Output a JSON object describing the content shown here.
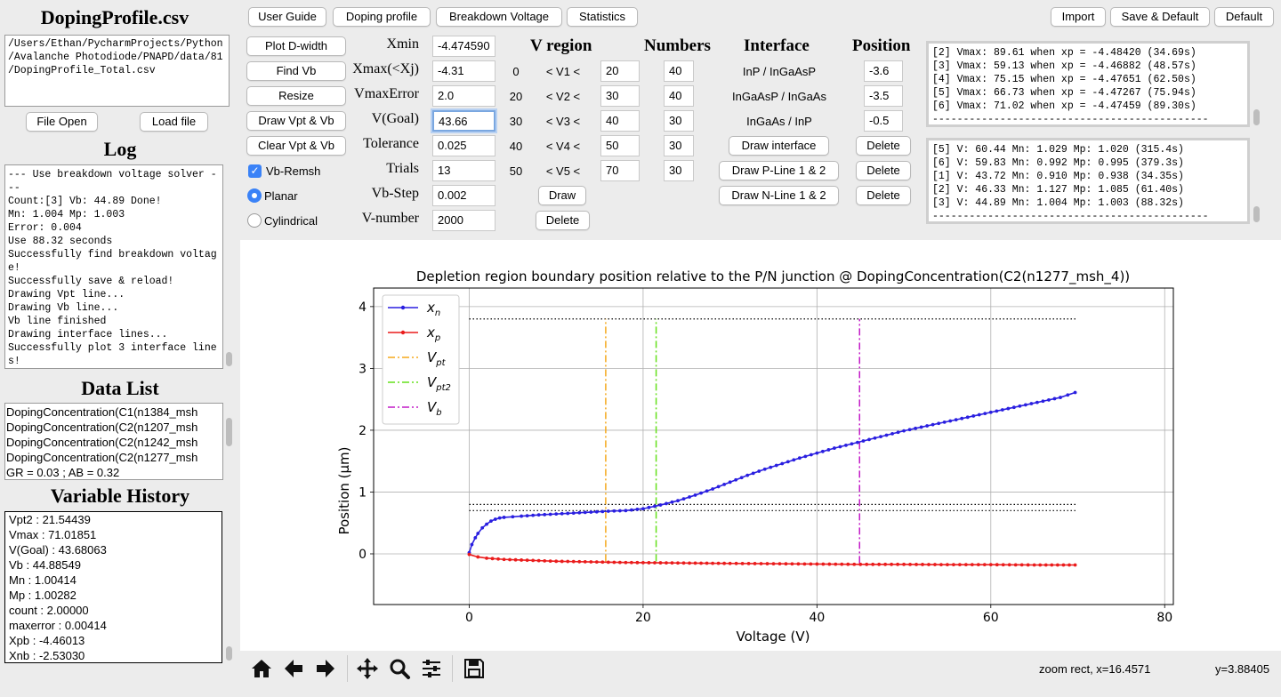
{
  "left": {
    "file_title": "DopingProfile.csv",
    "file_path_lines": [
      "/Users/Ethan/PycharmProjects/Python",
      "/Avalanche Photodiode/PNAPD/data/81",
      "/DopingProfile_Total.csv"
    ],
    "file_open_label": "File Open",
    "load_file_label": "Load file",
    "log_title": "Log",
    "log_lines": [
      "--- Use breakdown voltage solver -",
      "--",
      "Count:[3]  Vb: 44.89 Done!",
      "Mn: 1.004   Mp: 1.003",
      "Error: 0.004",
      "Use 88.32 seconds",
      "Successfully find breakdown voltag",
      "e!",
      "Successfully save & reload!",
      "Drawing Vpt line...",
      "Drawing Vb line...",
      "Vb line finished",
      "Drawing interface lines...",
      "Successfully plot 3 interface line",
      "s!"
    ],
    "data_list_title": "Data List",
    "data_list_items": [
      "DopingConcentration(C1(n1384_msh",
      "DopingConcentration(C2(n1207_msh",
      "DopingConcentration(C2(n1242_msh",
      "DopingConcentration(C2(n1277_msh",
      "GR = 0.03 ; AB = 0.32"
    ],
    "var_history_title": "Variable History",
    "var_history": [
      "Vpt2 :    21.54439",
      "Vmax :     71.01851",
      "V(Goal) :     43.68063",
      "Vb :     44.88549",
      "Mn :     1.00414",
      "Mp :     1.00282",
      "count :     2.00000",
      "maxerror :     0.00414",
      "Xpb :    -4.46013",
      "Xnb :    -2.53030"
    ]
  },
  "tabs": [
    "User Guide",
    "Doping profile",
    "Breakdown Voltage",
    "Statistics"
  ],
  "right_buttons": [
    "Import",
    "Save & Default",
    "Default"
  ],
  "actions": [
    "Plot D-width",
    "Find Vb",
    "Resize",
    "Draw Vpt & Vb",
    "Clear Vpt & Vb"
  ],
  "options": {
    "vb_remsh": "Vb-Remsh",
    "planar": "Planar",
    "cylindrical": "Cylindrical"
  },
  "params": [
    {
      "label": "Xmin",
      "value": "-4.474590"
    },
    {
      "label": "Xmax(<Xj)",
      "value": "-4.31"
    },
    {
      "label": "VmaxError",
      "value": "2.0"
    },
    {
      "label": "V(Goal)",
      "value": "43.66"
    },
    {
      "label": "Tolerance",
      "value": "0.025"
    },
    {
      "label": "Trials",
      "value": "13"
    },
    {
      "label": "Vb-Step",
      "value": "0.002"
    },
    {
      "label": "V-number",
      "value": "2000"
    }
  ],
  "vregion": {
    "header": "V region",
    "numbers_header": "Numbers",
    "rows": [
      {
        "low": "0",
        "name": "<  V1  <",
        "high": "20",
        "num": "40"
      },
      {
        "low": "20",
        "name": "<  V2  <",
        "high": "30",
        "num": "40"
      },
      {
        "low": "30",
        "name": "<  V3  <",
        "high": "40",
        "num": "30"
      },
      {
        "low": "40",
        "name": "<  V4  <",
        "high": "50",
        "num": "30"
      },
      {
        "low": "50",
        "name": "<  V5  <",
        "high": "70",
        "num": "30"
      }
    ],
    "draw_label": "Draw",
    "delete_label": "Delete"
  },
  "interface": {
    "header": "Interface",
    "position_header": "Position",
    "rows": [
      {
        "name": "InP / InGaAsP",
        "pos": "-3.6"
      },
      {
        "name": "InGaAsP / InGaAs",
        "pos": "-3.5"
      },
      {
        "name": "InGaAs / InP",
        "pos": "-0.5"
      }
    ],
    "draw_buttons": [
      "Draw interface",
      "Draw P-Line 1 & 2",
      "Draw N-Line 1 & 2"
    ],
    "delete_label": "Delete"
  },
  "vmax_log": [
    "[2] Vmax: 89.61 when xp = -4.48420 (34.69s)",
    "[3] Vmax: 59.13 when xp = -4.46882 (48.57s)",
    "[4] Vmax: 75.15 when xp = -4.47651 (62.50s)",
    "[5] Vmax: 66.73 when xp = -4.47267 (75.94s)",
    "[6] Vmax: 71.02 when xp = -4.47459 (89.30s)",
    "---------------------------------------------"
  ],
  "vb_log": [
    "[5] V: 60.44  Mn: 1.029  Mp: 1.020  (315.4s)",
    "[6] V: 59.83  Mn: 0.992  Mp: 0.995  (379.3s)",
    "[1] V: 43.72  Mn: 0.910  Mp: 0.938  (34.35s)",
    "[2] V: 46.33  Mn: 1.127  Mp: 1.085  (61.40s)",
    "[3] V: 44.89  Mn: 1.004  Mp: 1.003  (88.32s)",
    "---------------------------------------------"
  ],
  "status": {
    "zoom": "zoom rect, x=16.4571",
    "y": "y=3.88405"
  },
  "toolbar": [
    "home-icon",
    "back-arrow-icon",
    "forward-arrow-icon",
    "pan-icon",
    "zoom-icon",
    "configure-subplots-icon",
    "save-icon"
  ],
  "colors": {
    "xn": "#2a1fe0",
    "xp": "#ea1c1c",
    "vpt": "#f5a81b",
    "vpt2": "#64e01b",
    "vb": "#c21bc7",
    "checkbox": "#3a82f7"
  },
  "chart_data": {
    "type": "line",
    "title": "Depletion region boundary position relative to the P/N junction @ DopingConcentration(C2(n1277_msh_4))",
    "xlabel": "Voltage (V)",
    "ylabel": "Position (μm)",
    "xlim": [
      -11,
      81
    ],
    "ylim": [
      -0.82,
      4.3
    ],
    "xticks": [
      "0",
      "20",
      "40",
      "60",
      "80"
    ],
    "yticks": [
      "0",
      "1",
      "2",
      "3",
      "4"
    ],
    "grid": true,
    "legend_position": "top-left",
    "legend": [
      "x_n",
      "x_p",
      "V_pt",
      "V_pt2",
      "V_b"
    ],
    "series": [
      {
        "name": "x_n",
        "x": [
          0,
          0.3,
          0.7,
          1,
          1.5,
          2,
          2.5,
          3,
          3.5,
          4,
          5,
          6,
          8,
          10,
          12,
          14,
          16,
          18,
          20,
          22,
          24,
          26,
          28,
          30,
          32,
          34,
          36,
          38,
          40,
          42,
          44,
          46,
          48,
          50,
          52,
          54,
          56,
          58,
          60,
          62,
          64,
          66,
          68,
          69.7
        ],
        "y": [
          0.02,
          0.15,
          0.26,
          0.33,
          0.42,
          0.48,
          0.53,
          0.56,
          0.58,
          0.59,
          0.6,
          0.61,
          0.63,
          0.645,
          0.66,
          0.675,
          0.69,
          0.7,
          0.73,
          0.79,
          0.86,
          0.95,
          1.05,
          1.16,
          1.27,
          1.37,
          1.46,
          1.55,
          1.63,
          1.71,
          1.78,
          1.85,
          1.92,
          1.99,
          2.05,
          2.11,
          2.17,
          2.23,
          2.29,
          2.35,
          2.41,
          2.47,
          2.53,
          2.61
        ]
      },
      {
        "name": "x_p",
        "x": [
          0,
          1,
          2,
          4,
          6,
          8,
          10,
          14,
          18,
          22,
          26,
          30,
          35,
          40,
          45,
          50,
          55,
          60,
          65,
          69.7
        ],
        "y": [
          -0.01,
          -0.05,
          -0.07,
          -0.09,
          -0.1,
          -0.11,
          -0.12,
          -0.13,
          -0.14,
          -0.145,
          -0.15,
          -0.155,
          -0.16,
          -0.165,
          -0.17,
          -0.17,
          -0.175,
          -0.175,
          -0.18,
          -0.18
        ]
      }
    ],
    "vlines": [
      {
        "name": "V_pt",
        "x": 15.7,
        "ymin": -0.12,
        "ymax": 3.8
      },
      {
        "name": "V_pt2",
        "x": 21.5,
        "ymin": -0.12,
        "ymax": 3.8
      },
      {
        "name": "V_b",
        "x": 44.9,
        "ymin": -0.15,
        "ymax": 3.8
      }
    ],
    "hlines": [
      {
        "y": 3.8,
        "xmin": 0,
        "xmax": 70
      },
      {
        "y": 0.8,
        "xmin": 0,
        "xmax": 70
      },
      {
        "y": 0.7,
        "xmin": 0,
        "xmax": 70
      }
    ]
  }
}
